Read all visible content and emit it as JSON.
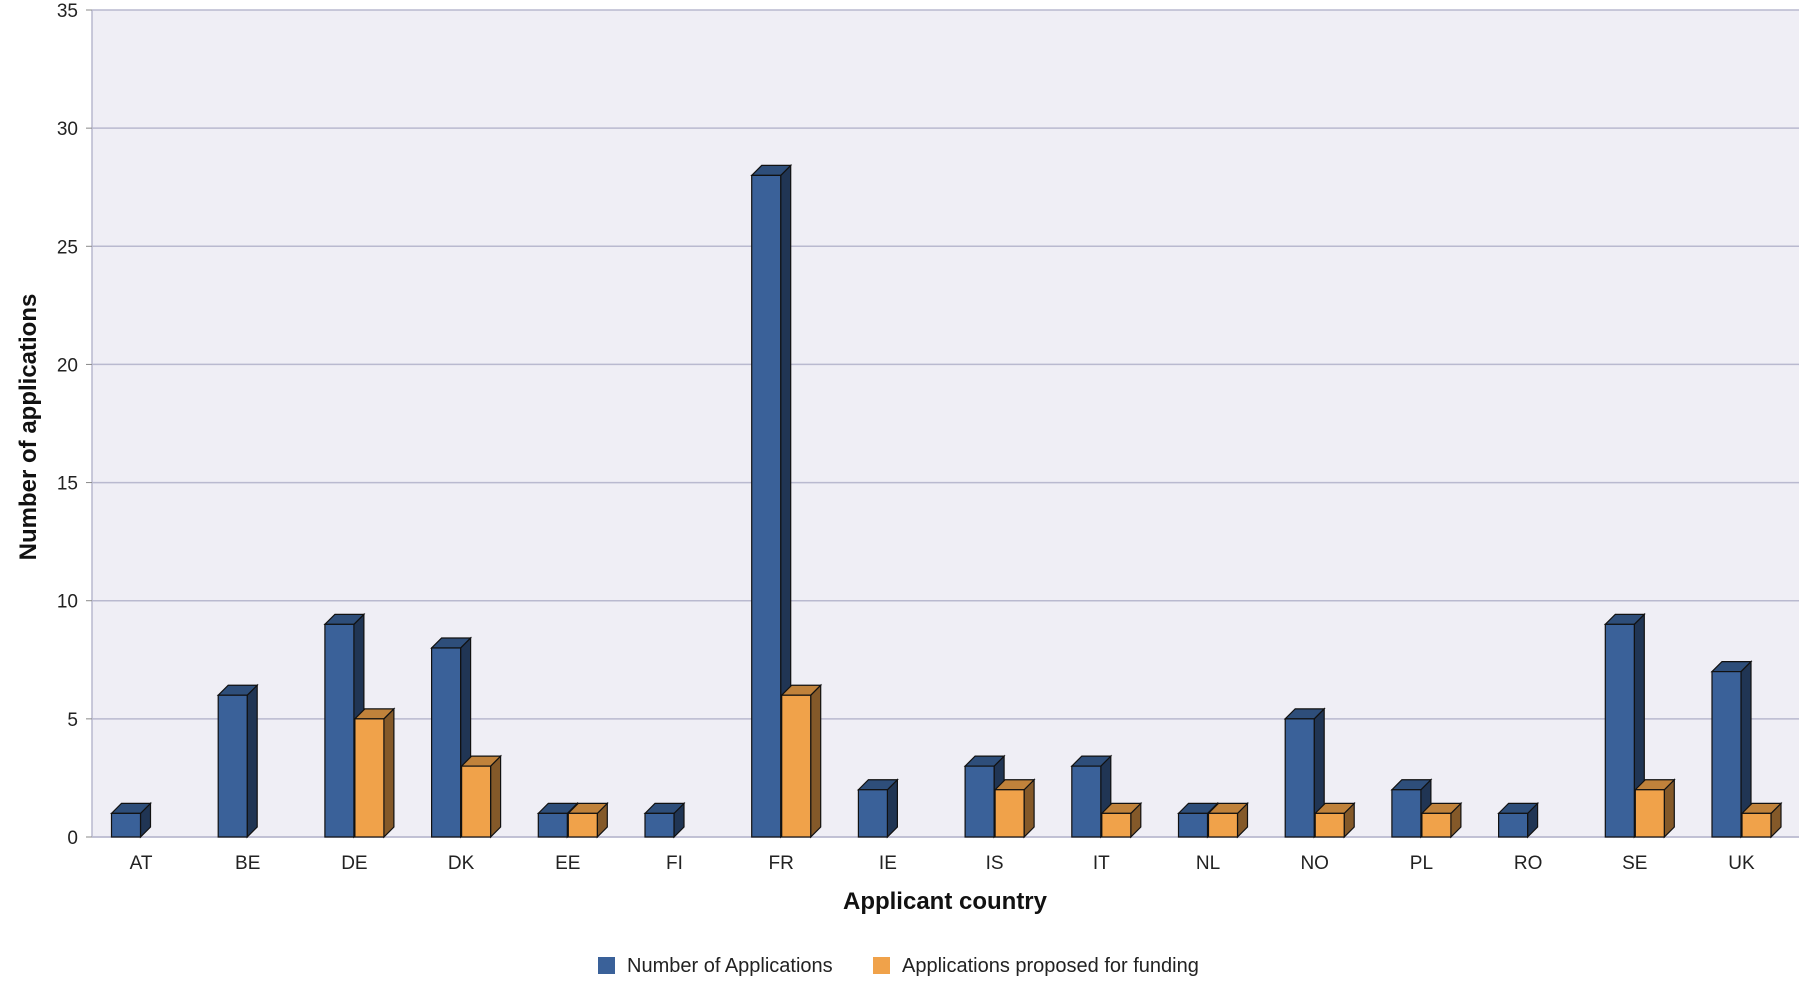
{
  "chart_data": {
    "type": "bar",
    "title": "",
    "xlabel": "Applicant country",
    "ylabel": "Number of applications",
    "ylim": [
      0,
      35
    ],
    "yticks": [
      0,
      5,
      10,
      15,
      20,
      25,
      30,
      35
    ],
    "grid": true,
    "legend_position": "bottom",
    "categories": [
      "AT",
      "BE",
      "DE",
      "DK",
      "EE",
      "FI",
      "FR",
      "IE",
      "IS",
      "IT",
      "NL",
      "NO",
      "PL",
      "RO",
      "SE",
      "UK"
    ],
    "series": [
      {
        "name": "Number of Applications",
        "color": "#3a6199",
        "values": [
          1,
          6,
          9,
          8,
          1,
          1,
          28,
          2,
          3,
          3,
          1,
          5,
          2,
          1,
          9,
          7
        ]
      },
      {
        "name": "Applications proposed for funding",
        "color": "#f0a24a",
        "values": [
          0,
          0,
          5,
          3,
          1,
          0,
          6,
          0,
          2,
          1,
          1,
          1,
          1,
          0,
          2,
          1
        ]
      }
    ]
  }
}
